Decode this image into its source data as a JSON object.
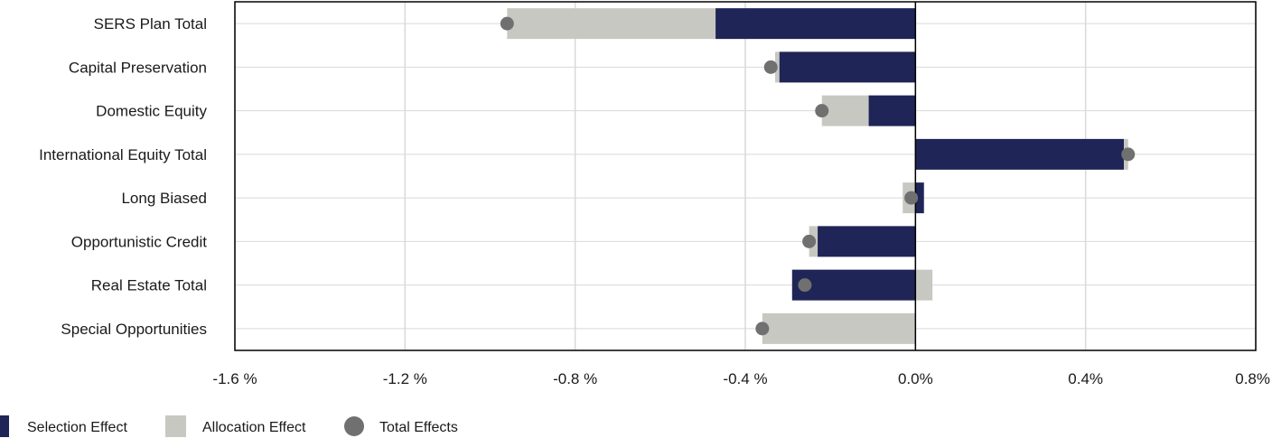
{
  "chart_data": {
    "type": "bar",
    "orientation": "horizontal",
    "stacked": true,
    "categories": [
      "SERS Plan Total",
      "Capital Preservation",
      "Domestic Equity",
      "International Equity Total",
      "Long Biased",
      "Opportunistic Credit",
      "Real Estate Total",
      "Special Opportunities"
    ],
    "series": [
      {
        "name": "Selection Effect",
        "type": "bar",
        "color": "#1f2556",
        "values": [
          -0.47,
          -0.32,
          -0.11,
          0.49,
          0.02,
          -0.23,
          -0.29,
          0.0
        ]
      },
      {
        "name": "Allocation Effect",
        "type": "bar",
        "color": "#c8c8c3",
        "values": [
          -0.49,
          -0.01,
          -0.11,
          0.01,
          -0.03,
          -0.02,
          0.04,
          -0.36
        ]
      },
      {
        "name": "Total Effects",
        "type": "marker",
        "color": "#707070",
        "values": [
          -0.96,
          -0.34,
          -0.22,
          0.5,
          -0.01,
          -0.25,
          -0.26,
          -0.36
        ]
      }
    ],
    "xlim": [
      -1.6,
      0.8
    ],
    "xticks": [
      -1.6,
      -1.2,
      -0.8,
      -0.4,
      0.0,
      0.4,
      0.8
    ],
    "xtick_labels": [
      "-1.6 %",
      "-1.2 %",
      "-0.8 %",
      "-0.4 %",
      "0.0%",
      "0.4%",
      "0.8%"
    ],
    "grid": true,
    "legend_position": "bottom-left"
  }
}
